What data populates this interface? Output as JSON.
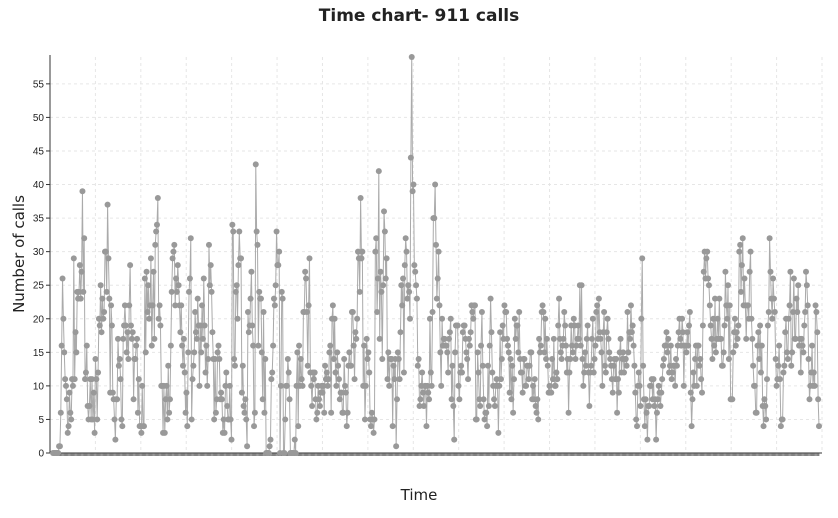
{
  "chart_data": {
    "type": "line",
    "title": "Time chart- 911 calls",
    "xlabel": "Time",
    "ylabel": "Number of calls",
    "ylim": [
      0,
      59
    ],
    "yticks": [
      0,
      5,
      10,
      15,
      20,
      25,
      30,
      35,
      40,
      45,
      50,
      55
    ],
    "grid": true,
    "line_color": "#aaaaaa",
    "marker_color": "#999999",
    "series": [
      {
        "values": [
          0,
          0,
          0,
          0,
          0,
          0,
          0,
          1,
          1,
          6,
          16,
          26,
          20,
          15,
          11,
          10,
          8,
          3,
          4,
          9,
          6,
          5,
          11,
          10,
          29,
          11,
          18,
          15,
          24,
          23,
          24,
          28,
          23,
          27,
          39,
          24,
          32,
          11,
          12,
          16,
          7,
          5,
          7,
          11,
          5,
          11,
          5,
          9,
          3,
          14,
          11,
          5,
          12,
          20,
          19,
          25,
          18,
          23,
          20,
          21,
          30,
          30,
          24,
          37,
          29,
          23,
          9,
          22,
          19,
          9,
          8,
          5,
          2,
          8,
          8,
          17,
          13,
          14,
          11,
          5,
          4,
          17,
          19,
          22,
          19,
          15,
          18,
          14,
          22,
          28,
          19,
          17,
          18,
          8,
          14,
          14,
          16,
          17,
          6,
          11,
          4,
          4,
          3,
          10,
          4,
          4,
          26,
          15,
          27,
          21,
          25,
          20,
          22,
          29,
          16,
          22,
          27,
          17,
          31,
          33,
          34,
          38,
          20,
          22,
          19,
          10,
          10,
          3,
          10,
          3,
          8,
          10,
          5,
          13,
          6,
          8,
          16,
          24,
          29,
          30,
          31,
          22,
          26,
          24,
          28,
          25,
          22,
          18,
          22,
          16,
          13,
          17,
          12,
          6,
          9,
          4,
          15,
          24,
          26,
          32,
          5,
          11,
          13,
          15,
          21,
          18,
          17,
          23,
          19,
          10,
          19,
          15,
          22,
          17,
          26,
          19,
          12,
          16,
          10,
          14,
          31,
          25,
          28,
          24,
          18,
          14,
          5,
          14,
          6,
          8,
          15,
          16,
          14,
          8,
          9,
          8,
          3,
          5,
          3,
          10,
          12,
          7,
          5,
          5,
          10,
          5,
          2,
          34,
          33,
          14,
          13,
          24,
          25,
          20,
          28,
          33,
          29,
          29,
          9,
          13,
          7,
          6,
          8,
          5,
          1,
          21,
          18,
          19,
          23,
          27,
          19,
          16,
          4,
          6,
          43,
          33,
          31,
          16,
          24,
          23,
          23,
          15,
          8,
          21,
          6,
          14,
          0,
          0,
          0,
          0,
          1,
          2,
          11,
          12,
          16,
          23,
          22,
          25,
          33,
          28,
          28,
          30,
          0,
          10,
          24,
          23,
          0,
          0,
          5,
          10,
          10,
          14,
          12,
          8,
          0,
          0,
          0,
          0,
          0,
          2,
          0,
          10,
          15,
          4,
          16,
          10,
          14,
          11,
          10,
          21,
          21,
          27,
          26,
          21,
          13,
          22,
          29,
          12,
          10,
          7,
          12,
          11,
          12,
          8,
          5,
          6,
          10,
          8,
          7,
          9,
          10,
          9,
          10,
          6,
          13,
          11,
          12,
          10,
          11,
          15,
          16,
          6,
          20,
          22,
          14,
          20,
          12,
          10,
          15,
          13,
          11,
          8,
          9,
          9,
          6,
          6,
          14,
          10,
          9,
          4,
          6,
          13,
          15,
          13,
          13,
          21,
          21,
          16,
          11,
          18,
          17,
          20,
          30,
          29,
          24,
          38,
          29,
          30,
          10,
          16,
          5,
          10,
          17,
          14,
          15,
          12,
          5,
          4,
          6,
          5,
          3,
          5,
          30,
          32,
          21,
          26,
          42,
          17,
          27,
          24,
          14,
          25,
          36,
          33,
          26,
          29,
          11,
          15,
          10,
          14,
          14,
          14,
          4,
          13,
          11,
          14,
          1,
          8,
          15,
          14,
          11,
          18,
          25,
          22,
          26,
          12,
          28,
          32,
          30,
          23,
          25,
          24,
          20,
          44,
          59,
          39,
          40,
          28,
          27,
          25,
          23,
          13,
          14,
          7,
          8,
          10,
          12,
          9,
          7,
          10,
          10,
          4,
          10,
          9,
          8,
          20,
          12,
          10,
          21,
          35,
          35,
          40,
          31,
          23,
          26,
          30,
          22,
          15,
          10,
          20,
          16,
          17,
          17,
          16,
          16,
          15,
          12,
          17,
          18,
          20,
          8,
          13,
          7,
          2,
          15,
          19,
          19,
          19,
          10,
          8,
          12,
          13,
          12,
          18,
          19,
          19,
          17,
          15,
          14,
          11,
          17,
          16,
          18,
          22,
          21,
          20,
          22,
          22,
          5,
          5,
          15,
          12,
          8,
          7,
          16,
          21,
          13,
          8,
          5,
          6,
          6,
          4,
          13,
          7,
          16,
          23,
          18,
          12,
          10,
          8,
          7,
          10,
          11,
          10,
          3,
          10,
          18,
          11,
          14,
          19,
          17,
          22,
          21,
          21,
          17,
          16,
          15,
          9,
          14,
          8,
          13,
          6,
          11,
          20,
          17,
          19,
          19,
          15,
          21,
          14,
          12,
          12,
          9,
          14,
          14,
          10,
          10,
          13,
          13,
          11,
          13,
          15,
          15,
          8,
          10,
          8,
          11,
          7,
          6,
          8,
          5,
          17,
          15,
          16,
          21,
          22,
          21,
          15,
          20,
          14,
          17,
          13,
          9,
          10,
          9,
          9,
          14,
          11,
          17,
          10,
          10,
          12,
          11,
          19,
          23,
          17,
          15,
          14,
          16,
          17,
          21,
          19,
          16,
          12,
          14,
          6,
          12,
          14,
          19,
          16,
          15,
          20,
          19,
          14,
          16,
          17,
          19,
          17,
          25,
          16,
          25,
          14,
          10,
          12,
          15,
          13,
          17,
          19,
          12,
          7,
          12,
          13,
          17,
          20,
          12,
          14,
          16,
          21,
          22,
          17,
          23,
          18,
          17,
          15,
          10,
          18,
          21,
          13,
          12,
          18,
          20,
          17,
          15,
          14,
          13,
          11,
          9,
          13,
          14,
          11,
          14,
          6,
          11,
          9,
          15,
          17,
          12,
          14,
          15,
          12,
          14,
          14,
          13,
          21,
          15,
          18,
          17,
          22,
          18,
          19,
          16,
          13,
          9,
          5,
          4,
          10,
          12,
          10,
          7,
          20,
          29,
          13,
          8,
          4,
          8,
          6,
          2,
          7,
          7,
          10,
          10,
          11,
          8,
          11,
          7,
          8,
          2,
          6,
          8,
          10,
          9,
          7,
          9,
          11,
          13,
          14,
          16,
          16,
          18,
          15,
          17,
          12,
          13,
          16,
          11,
          12,
          13,
          13,
          10,
          14,
          13,
          16,
          18,
          20,
          17,
          16,
          20,
          18,
          10,
          16,
          16,
          15,
          18,
          16,
          19,
          21,
          9,
          4,
          8,
          12,
          10,
          14,
          16,
          10,
          16,
          16,
          13,
          14,
          11,
          9,
          19,
          27,
          30,
          26,
          29,
          30,
          26,
          25,
          22,
          19,
          17,
          14,
          20,
          16,
          23,
          15,
          17,
          20,
          17,
          23,
          17,
          17,
          13,
          13,
          15,
          19,
          27,
          22,
          20,
          25,
          14,
          22,
          8,
          8,
          8,
          15,
          18,
          20,
          16,
          18,
          17,
          19,
          30,
          31,
          24,
          28,
          32,
          22,
          26,
          22,
          17,
          22,
          22,
          20,
          27,
          30,
          20,
          17,
          13,
          10,
          10,
          6,
          6,
          16,
          18,
          14,
          19,
          12,
          16,
          7,
          4,
          8,
          7,
          5,
          11,
          19,
          21,
          32,
          27,
          23,
          20,
          26,
          23,
          21,
          14,
          10,
          11,
          13,
          16,
          11,
          4,
          5,
          5,
          12,
          13,
          18,
          20,
          15,
          14,
          20,
          22,
          27,
          13,
          15,
          21,
          26,
          17,
          17,
          23,
          21,
          25,
          16,
          17,
          12,
          17,
          16,
          15,
          19,
          21,
          27,
          25,
          22,
          14,
          8,
          10,
          12,
          16,
          10,
          12,
          10,
          22,
          21,
          18,
          8,
          4
        ]
      }
    ]
  }
}
